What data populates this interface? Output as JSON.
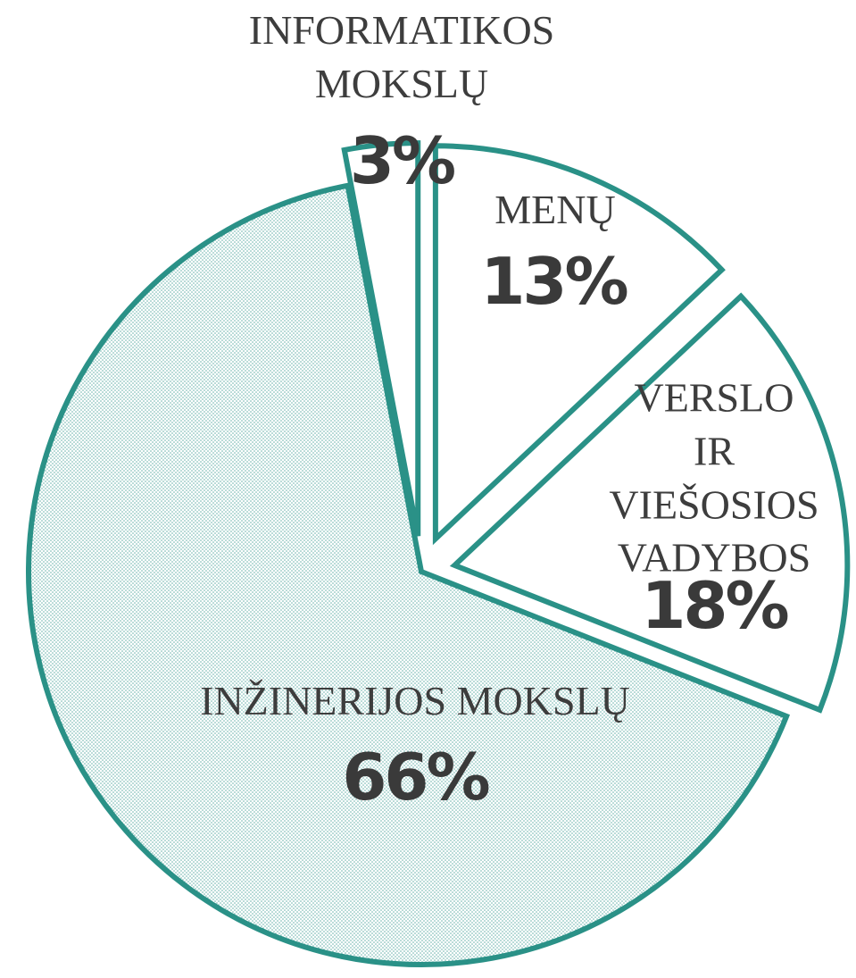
{
  "chart_data": {
    "type": "pie",
    "categories": [
      "MENŲ",
      "VERSLO IR\nVIEŠOSIOS\nVADYBOS",
      "INŽINERIJOS MOKSLŲ",
      "INFORMATIKOS\nMOKSLŲ"
    ],
    "values": [
      13,
      18,
      66,
      3
    ],
    "value_labels": [
      "13%",
      "18%",
      "66%",
      "3%"
    ],
    "color": "#2a9187"
  }
}
